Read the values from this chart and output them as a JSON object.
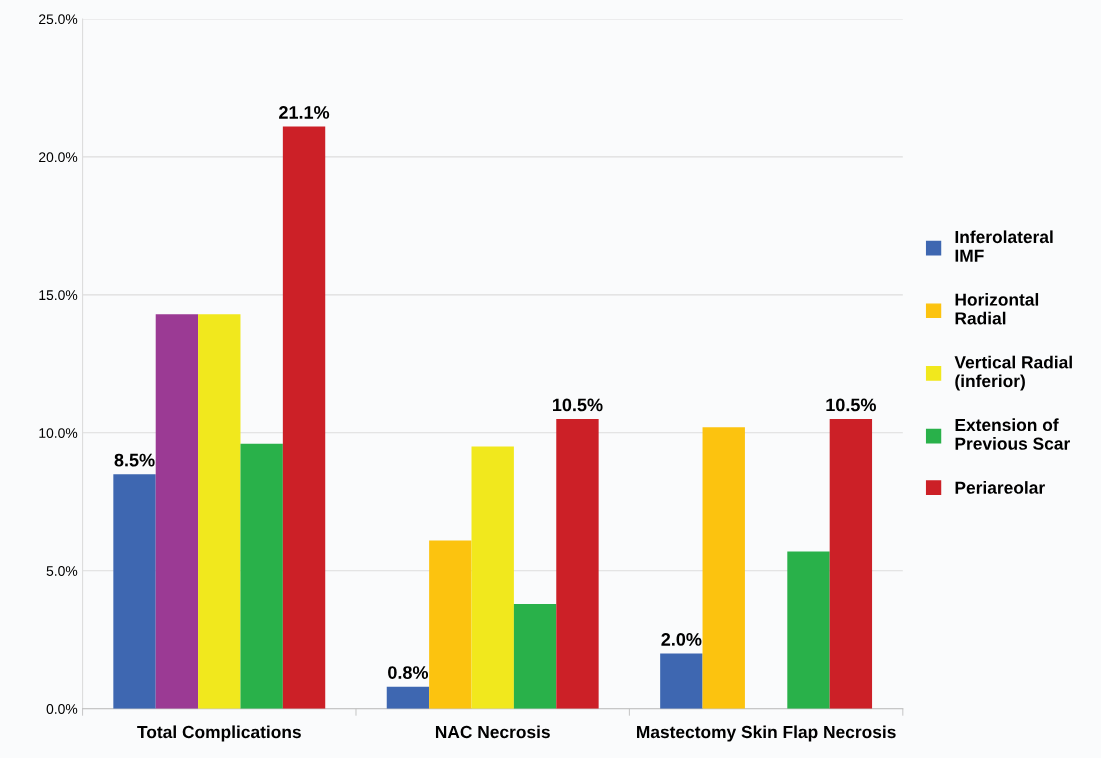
{
  "chart_data": {
    "type": "bar",
    "categories": [
      "Total Complications",
      "NAC Necrosis",
      "Mastectomy Skin Flap Necrosis"
    ],
    "series": [
      {
        "name": "Inferolateral\nIMF",
        "color": "#3e67b1",
        "values": [
          8.5,
          0.8,
          2.0
        ],
        "value_labels": [
          "8.5%",
          "0.8%",
          "2.0%"
        ]
      },
      {
        "name": "Horizontal\nRadial",
        "color": "#fcc30f",
        "colors": [
          "#9b3a94",
          "#fcc30f",
          "#fcc30f"
        ],
        "values": [
          14.3,
          6.1,
          10.2
        ]
      },
      {
        "name": "Vertical Radial\n(inferior)",
        "color": "#f1e81d",
        "values": [
          14.3,
          9.5,
          null
        ]
      },
      {
        "name": "Extension of\nPrevious Scar",
        "color": "#29b14a",
        "values": [
          9.6,
          3.8,
          5.7
        ]
      },
      {
        "name": "Periareolar",
        "color": "#cc2027",
        "values": [
          21.1,
          10.5,
          10.5
        ],
        "value_labels": [
          "21.1%",
          "10.5%",
          "10.5%"
        ]
      }
    ],
    "ylim": [
      0,
      25
    ],
    "yticks": [
      {
        "value": 0,
        "label": "0.0%"
      },
      {
        "value": 5,
        "label": "5.0%"
      },
      {
        "value": 10,
        "label": "10.0%"
      },
      {
        "value": 15,
        "label": "15.0%"
      },
      {
        "value": 20,
        "label": "20.0%"
      },
      {
        "value": 25,
        "label": "25.0%"
      }
    ],
    "grid": "y",
    "legend": "right"
  }
}
